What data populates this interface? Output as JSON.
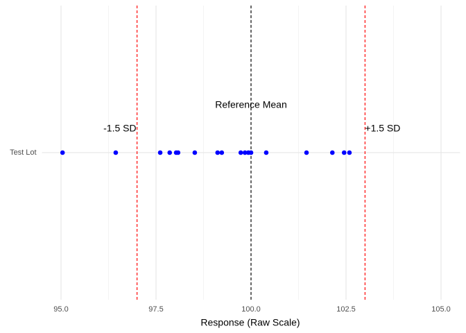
{
  "chart_data": {
    "type": "strip",
    "x_label": "Response (Raw Scale)",
    "categories": [
      "Test Lot"
    ],
    "series": [
      {
        "name": "Test Lot",
        "color": "#0000ff",
        "x": [
          95.04,
          96.44,
          97.61,
          97.86,
          98.03,
          98.08,
          98.52,
          99.12,
          99.23,
          99.73,
          99.84,
          99.93,
          100.0,
          100.4,
          101.46,
          102.14,
          102.45,
          102.59
        ]
      }
    ],
    "xlim": [
      94.5,
      105.5
    ],
    "xticks": [
      {
        "value": 95,
        "label": "95.0"
      },
      {
        "value": 97.5,
        "label": "97.5"
      },
      {
        "value": 100,
        "label": "100.0"
      },
      {
        "value": 102.5,
        "label": "102.5"
      },
      {
        "value": 105,
        "label": "105.0"
      }
    ],
    "minor_xticks": [
      96.25,
      98.75,
      101.25,
      103.75
    ],
    "grid": true,
    "reference_lines": [
      {
        "value": 97,
        "label": "-1.5 SD",
        "color": "#ff0000"
      },
      {
        "value": 100,
        "label": "Reference Mean",
        "color": "#000000"
      },
      {
        "value": 103,
        "label": "+1.5 SD",
        "color": "#ff0000"
      }
    ]
  }
}
